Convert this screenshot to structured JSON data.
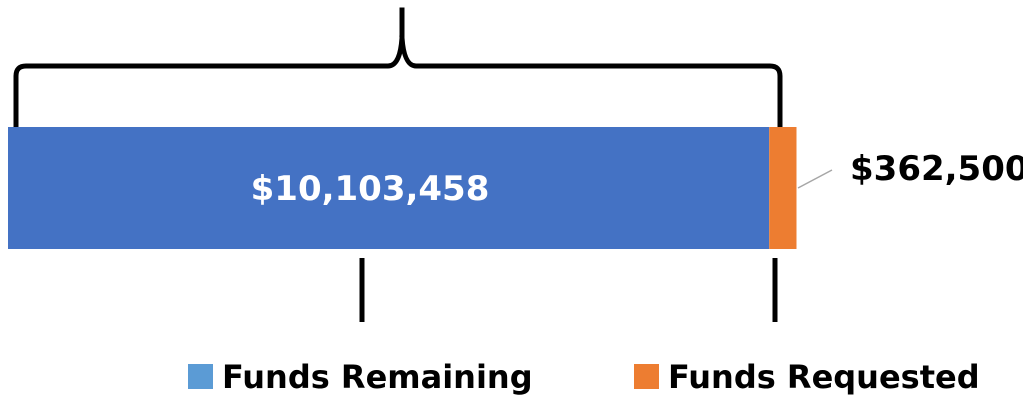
{
  "chart_data": {
    "type": "bar",
    "orientation": "horizontal",
    "stacked": true,
    "categories": [
      ""
    ],
    "series": [
      {
        "name": "Funds Remaining",
        "values": [
          10103458
        ],
        "label": "$10,103,458",
        "color": "#4472C4"
      },
      {
        "name": "Funds Requested",
        "values": [
          362500
        ],
        "label": "$362,500",
        "color": "#ED7D31"
      }
    ],
    "legend": {
      "position": "bottom",
      "items": [
        {
          "name": "Funds Remaining",
          "color": "#5B9BD5"
        },
        {
          "name": "Funds Requested",
          "color": "#ED7D31"
        }
      ]
    },
    "xlim": [
      0,
      10465958
    ],
    "title": "",
    "xlabel": "",
    "ylabel": "",
    "grid": false
  }
}
